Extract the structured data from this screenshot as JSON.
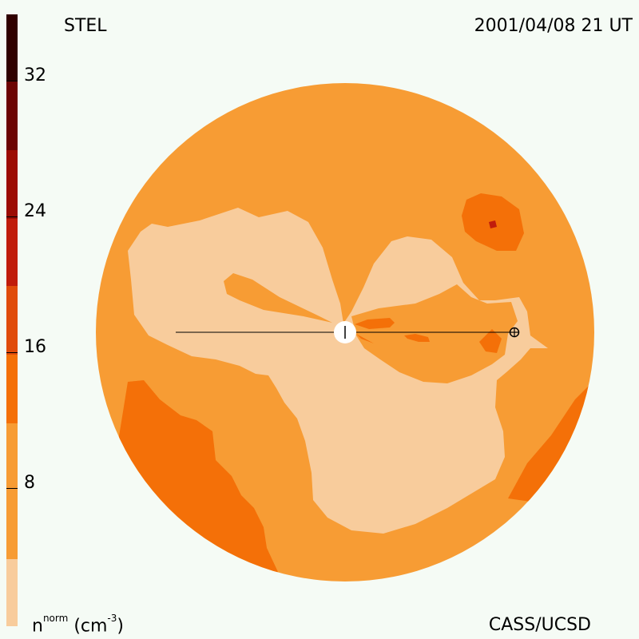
{
  "source_label": "STEL",
  "timestamp": "2001/04/08 21 UT",
  "credit": "CASS/UCSD",
  "units": {
    "symbol": "n",
    "superscript": "norm",
    "unit": "(cm",
    "unit_exp": "-3",
    "unit_close": ")"
  },
  "colorbar": {
    "tick_labels": [
      "32",
      "24",
      "16",
      "8"
    ],
    "bands": [
      "#f8cc9c",
      "#f79c34",
      "#f47008",
      "#e04c0c",
      "#c01c0c",
      "#9c0c04",
      "#6c0404",
      "#300000"
    ]
  },
  "colors": {
    "background": "#f5fbf5",
    "level_low": "#f8cc9c",
    "level_mid": "#f79c34",
    "level_high": "#f47008",
    "level_peak": "#c01c0c"
  },
  "markers": {
    "sun_marker": "sun",
    "earth_marker": "earth"
  }
}
